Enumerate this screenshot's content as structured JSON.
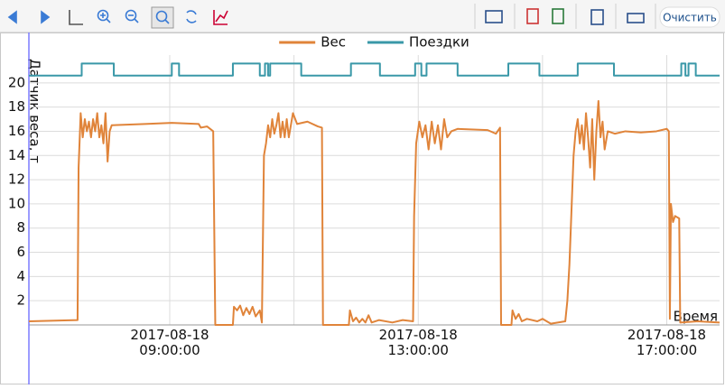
{
  "toolbar": {
    "clear_button": "Очистить"
  },
  "chart_data": {
    "type": "line",
    "y_label": "Датчик веса, т",
    "x_label": "Время",
    "grid": true,
    "legend": "top",
    "xlim": [
      "2017-08-18 06:44:00",
      "2017-08-18 17:51:00"
    ],
    "xticks": [
      "2017-08-18 09:00:00",
      "2017-08-18 13:00:00",
      "2017-08-18 17:00:00"
    ],
    "xminorticks": [
      "2017-08-18 11:00:00",
      "2017-08-18 15:00:00"
    ],
    "ylim": [
      0,
      22
    ],
    "yticks": [
      2,
      4,
      6,
      8,
      10,
      12,
      14,
      16,
      18,
      20
    ],
    "series": [
      {
        "name": "Вес",
        "color": "#e0843a",
        "x": [
          "2017-08-18 06:44:00",
          "2017-08-18 07:31:00",
          "2017-08-18 07:32:00",
          "2017-08-18 07:34:00",
          "2017-08-18 07:36:00",
          "2017-08-18 07:38:00",
          "2017-08-18 07:40:00",
          "2017-08-18 07:42:00",
          "2017-08-18 07:44:00",
          "2017-08-18 07:46:00",
          "2017-08-18 07:48:00",
          "2017-08-18 07:50:00",
          "2017-08-18 07:52:00",
          "2017-08-18 07:54:00",
          "2017-08-18 07:56:00",
          "2017-08-18 07:58:00",
          "2017-08-18 08:00:00",
          "2017-08-18 08:02:00",
          "2017-08-18 08:04:00",
          "2017-08-18 08:36:00",
          "2017-08-18 09:02:00",
          "2017-08-18 09:28:00",
          "2017-08-18 09:30:00",
          "2017-08-18 09:36:00",
          "2017-08-18 09:42:00",
          "2017-08-18 09:44:00",
          "2017-08-18 10:01:00",
          "2017-08-18 10:02:00",
          "2017-08-18 10:05:00",
          "2017-08-18 10:08:00",
          "2017-08-18 10:11:00",
          "2017-08-18 10:14:00",
          "2017-08-18 10:17:00",
          "2017-08-18 10:20:00",
          "2017-08-18 10:23:00",
          "2017-08-18 10:27:00",
          "2017-08-18 10:29:00",
          "2017-08-18 10:31:00",
          "2017-08-18 10:33:00",
          "2017-08-18 10:35:00",
          "2017-08-18 10:37:00",
          "2017-08-18 10:39:00",
          "2017-08-18 10:41:00",
          "2017-08-18 10:43:00",
          "2017-08-18 10:45:00",
          "2017-08-18 10:47:00",
          "2017-08-18 10:49:00",
          "2017-08-18 10:51:00",
          "2017-08-18 10:53:00",
          "2017-08-18 10:55:00",
          "2017-08-18 10:57:00",
          "2017-08-18 10:59:00",
          "2017-08-18 11:03:00",
          "2017-08-18 11:13:00",
          "2017-08-18 11:23:00",
          "2017-08-18 11:27:00",
          "2017-08-18 11:28:00",
          "2017-08-18 11:53:00",
          "2017-08-18 11:54:00",
          "2017-08-18 11:57:00",
          "2017-08-18 12:00:00",
          "2017-08-18 12:03:00",
          "2017-08-18 12:06:00",
          "2017-08-18 12:09:00",
          "2017-08-18 12:12:00",
          "2017-08-18 12:15:00",
          "2017-08-18 12:22:00",
          "2017-08-18 12:35:00",
          "2017-08-18 12:45:00",
          "2017-08-18 12:55:00",
          "2017-08-18 12:56:00",
          "2017-08-18 12:58:00",
          "2017-08-18 13:01:00",
          "2017-08-18 13:04:00",
          "2017-08-18 13:07:00",
          "2017-08-18 13:10:00",
          "2017-08-18 13:13:00",
          "2017-08-18 13:16:00",
          "2017-08-18 13:19:00",
          "2017-08-18 13:22:00",
          "2017-08-18 13:25:00",
          "2017-08-18 13:28:00",
          "2017-08-18 13:32:00",
          "2017-08-18 13:38:00",
          "2017-08-18 14:07:00",
          "2017-08-18 14:15:00",
          "2017-08-18 14:19:00",
          "2017-08-18 14:20:00",
          "2017-08-18 14:30:00",
          "2017-08-18 14:31:00",
          "2017-08-18 14:34:00",
          "2017-08-18 14:37:00",
          "2017-08-18 14:40:00",
          "2017-08-18 14:45:00",
          "2017-08-18 14:55:00",
          "2017-08-18 15:00:00",
          "2017-08-18 15:08:00",
          "2017-08-18 15:22:00",
          "2017-08-18 15:24:00",
          "2017-08-18 15:26:00",
          "2017-08-18 15:28:00",
          "2017-08-18 15:30:00",
          "2017-08-18 15:32:00",
          "2017-08-18 15:34:00",
          "2017-08-18 15:36:00",
          "2017-08-18 15:38:00",
          "2017-08-18 15:40:00",
          "2017-08-18 15:42:00",
          "2017-08-18 15:44:00",
          "2017-08-18 15:46:00",
          "2017-08-18 15:48:00",
          "2017-08-18 15:50:00",
          "2017-08-18 15:52:00",
          "2017-08-18 15:54:00",
          "2017-08-18 15:56:00",
          "2017-08-18 15:58:00",
          "2017-08-18 16:00:00",
          "2017-08-18 16:03:00",
          "2017-08-18 16:10:00",
          "2017-08-18 16:20:00",
          "2017-08-18 16:35:00",
          "2017-08-18 16:50:00",
          "2017-08-18 17:00:00",
          "2017-08-18 17:02:00",
          "2017-08-18 17:03:00",
          "2017-08-18 17:04:00",
          "2017-08-18 17:06:00",
          "2017-08-18 17:08:00",
          "2017-08-18 17:12:00",
          "2017-08-18 17:13:00",
          "2017-08-18 17:30:00",
          "2017-08-18 17:51:00"
        ],
        "values": [
          0.3,
          0.4,
          13,
          17.5,
          15.5,
          17,
          16,
          16.8,
          15.5,
          17,
          16,
          17.5,
          15.5,
          16.5,
          15,
          17.5,
          13.5,
          16,
          16.5,
          16.6,
          16.7,
          16.6,
          16.3,
          16.4,
          16,
          0,
          0,
          1.5,
          1.2,
          1.6,
          0.8,
          1.4,
          0.9,
          1.5,
          0.7,
          1.2,
          0.2,
          14,
          15,
          16.5,
          15.5,
          17,
          15.8,
          16.5,
          17.5,
          15.5,
          16.8,
          15.5,
          17,
          15.5,
          16.5,
          17.5,
          16.6,
          16.8,
          16.4,
          16.3,
          0,
          0,
          1.2,
          0.3,
          0.6,
          0.2,
          0.5,
          0.2,
          0.8,
          0.2,
          0.4,
          0.2,
          0.4,
          0.3,
          9,
          15,
          16.8,
          15.5,
          16.5,
          14.5,
          16.8,
          15,
          16.5,
          14.5,
          17,
          15.5,
          16,
          16.2,
          16.1,
          15.8,
          16.3,
          0,
          0,
          1.2,
          0.5,
          0.9,
          0.3,
          0.5,
          0.3,
          0.5,
          0.1,
          0.3,
          2,
          5,
          9.5,
          14,
          16,
          17,
          15,
          16.5,
          14.5,
          17.5,
          15.5,
          13,
          17,
          12,
          16,
          18.5,
          15.5,
          16.8,
          14.5,
          16,
          15.8,
          16,
          15.9,
          16,
          16.2,
          16,
          0.5,
          10,
          8.5,
          9,
          8.8,
          0.2,
          0.3,
          0.2
        ]
      },
      {
        "name": "Поездки",
        "color": "#3a98a8",
        "x": [
          "2017-08-18 06:44:00",
          "2017-08-18 07:35:00",
          "2017-08-18 07:35:00",
          "2017-08-18 08:06:00",
          "2017-08-18 08:06:00",
          "2017-08-18 09:02:00",
          "2017-08-18 09:02:00",
          "2017-08-18 09:09:00",
          "2017-08-18 09:09:00",
          "2017-08-18 10:01:00",
          "2017-08-18 10:01:00",
          "2017-08-18 10:27:00",
          "2017-08-18 10:27:00",
          "2017-08-18 10:32:00",
          "2017-08-18 10:32:00",
          "2017-08-18 10:35:00",
          "2017-08-18 10:35:00",
          "2017-08-18 10:37:00",
          "2017-08-18 10:37:00",
          "2017-08-18 11:07:00",
          "2017-08-18 11:07:00",
          "2017-08-18 11:55:00",
          "2017-08-18 11:55:00",
          "2017-08-18 12:23:00",
          "2017-08-18 12:23:00",
          "2017-08-18 12:57:00",
          "2017-08-18 12:57:00",
          "2017-08-18 13:03:00",
          "2017-08-18 13:03:00",
          "2017-08-18 13:08:00",
          "2017-08-18 13:08:00",
          "2017-08-18 13:38:00",
          "2017-08-18 13:38:00",
          "2017-08-18 14:27:00",
          "2017-08-18 14:27:00",
          "2017-08-18 14:57:00",
          "2017-08-18 14:57:00",
          "2017-08-18 15:34:00",
          "2017-08-18 15:34:00",
          "2017-08-18 16:09:00",
          "2017-08-18 16:09:00",
          "2017-08-18 17:14:00",
          "2017-08-18 17:14:00",
          "2017-08-18 17:18:00",
          "2017-08-18 17:18:00",
          "2017-08-18 17:21:00",
          "2017-08-18 17:21:00",
          "2017-08-18 17:28:00",
          "2017-08-18 17:28:00",
          "2017-08-18 17:51:00"
        ],
        "values": [
          20.6,
          20.6,
          21.6,
          21.6,
          20.6,
          20.6,
          21.6,
          21.6,
          20.6,
          20.6,
          21.6,
          21.6,
          20.6,
          20.6,
          21.6,
          21.6,
          20.6,
          20.6,
          21.6,
          21.6,
          20.6,
          20.6,
          21.6,
          21.6,
          20.6,
          20.6,
          21.6,
          21.6,
          20.6,
          20.6,
          21.6,
          21.6,
          20.6,
          20.6,
          21.6,
          21.6,
          20.6,
          20.6,
          21.6,
          21.6,
          20.6,
          20.6,
          21.6,
          21.6,
          20.6,
          20.6,
          21.6,
          21.6,
          20.6,
          20.6
        ]
      }
    ]
  }
}
